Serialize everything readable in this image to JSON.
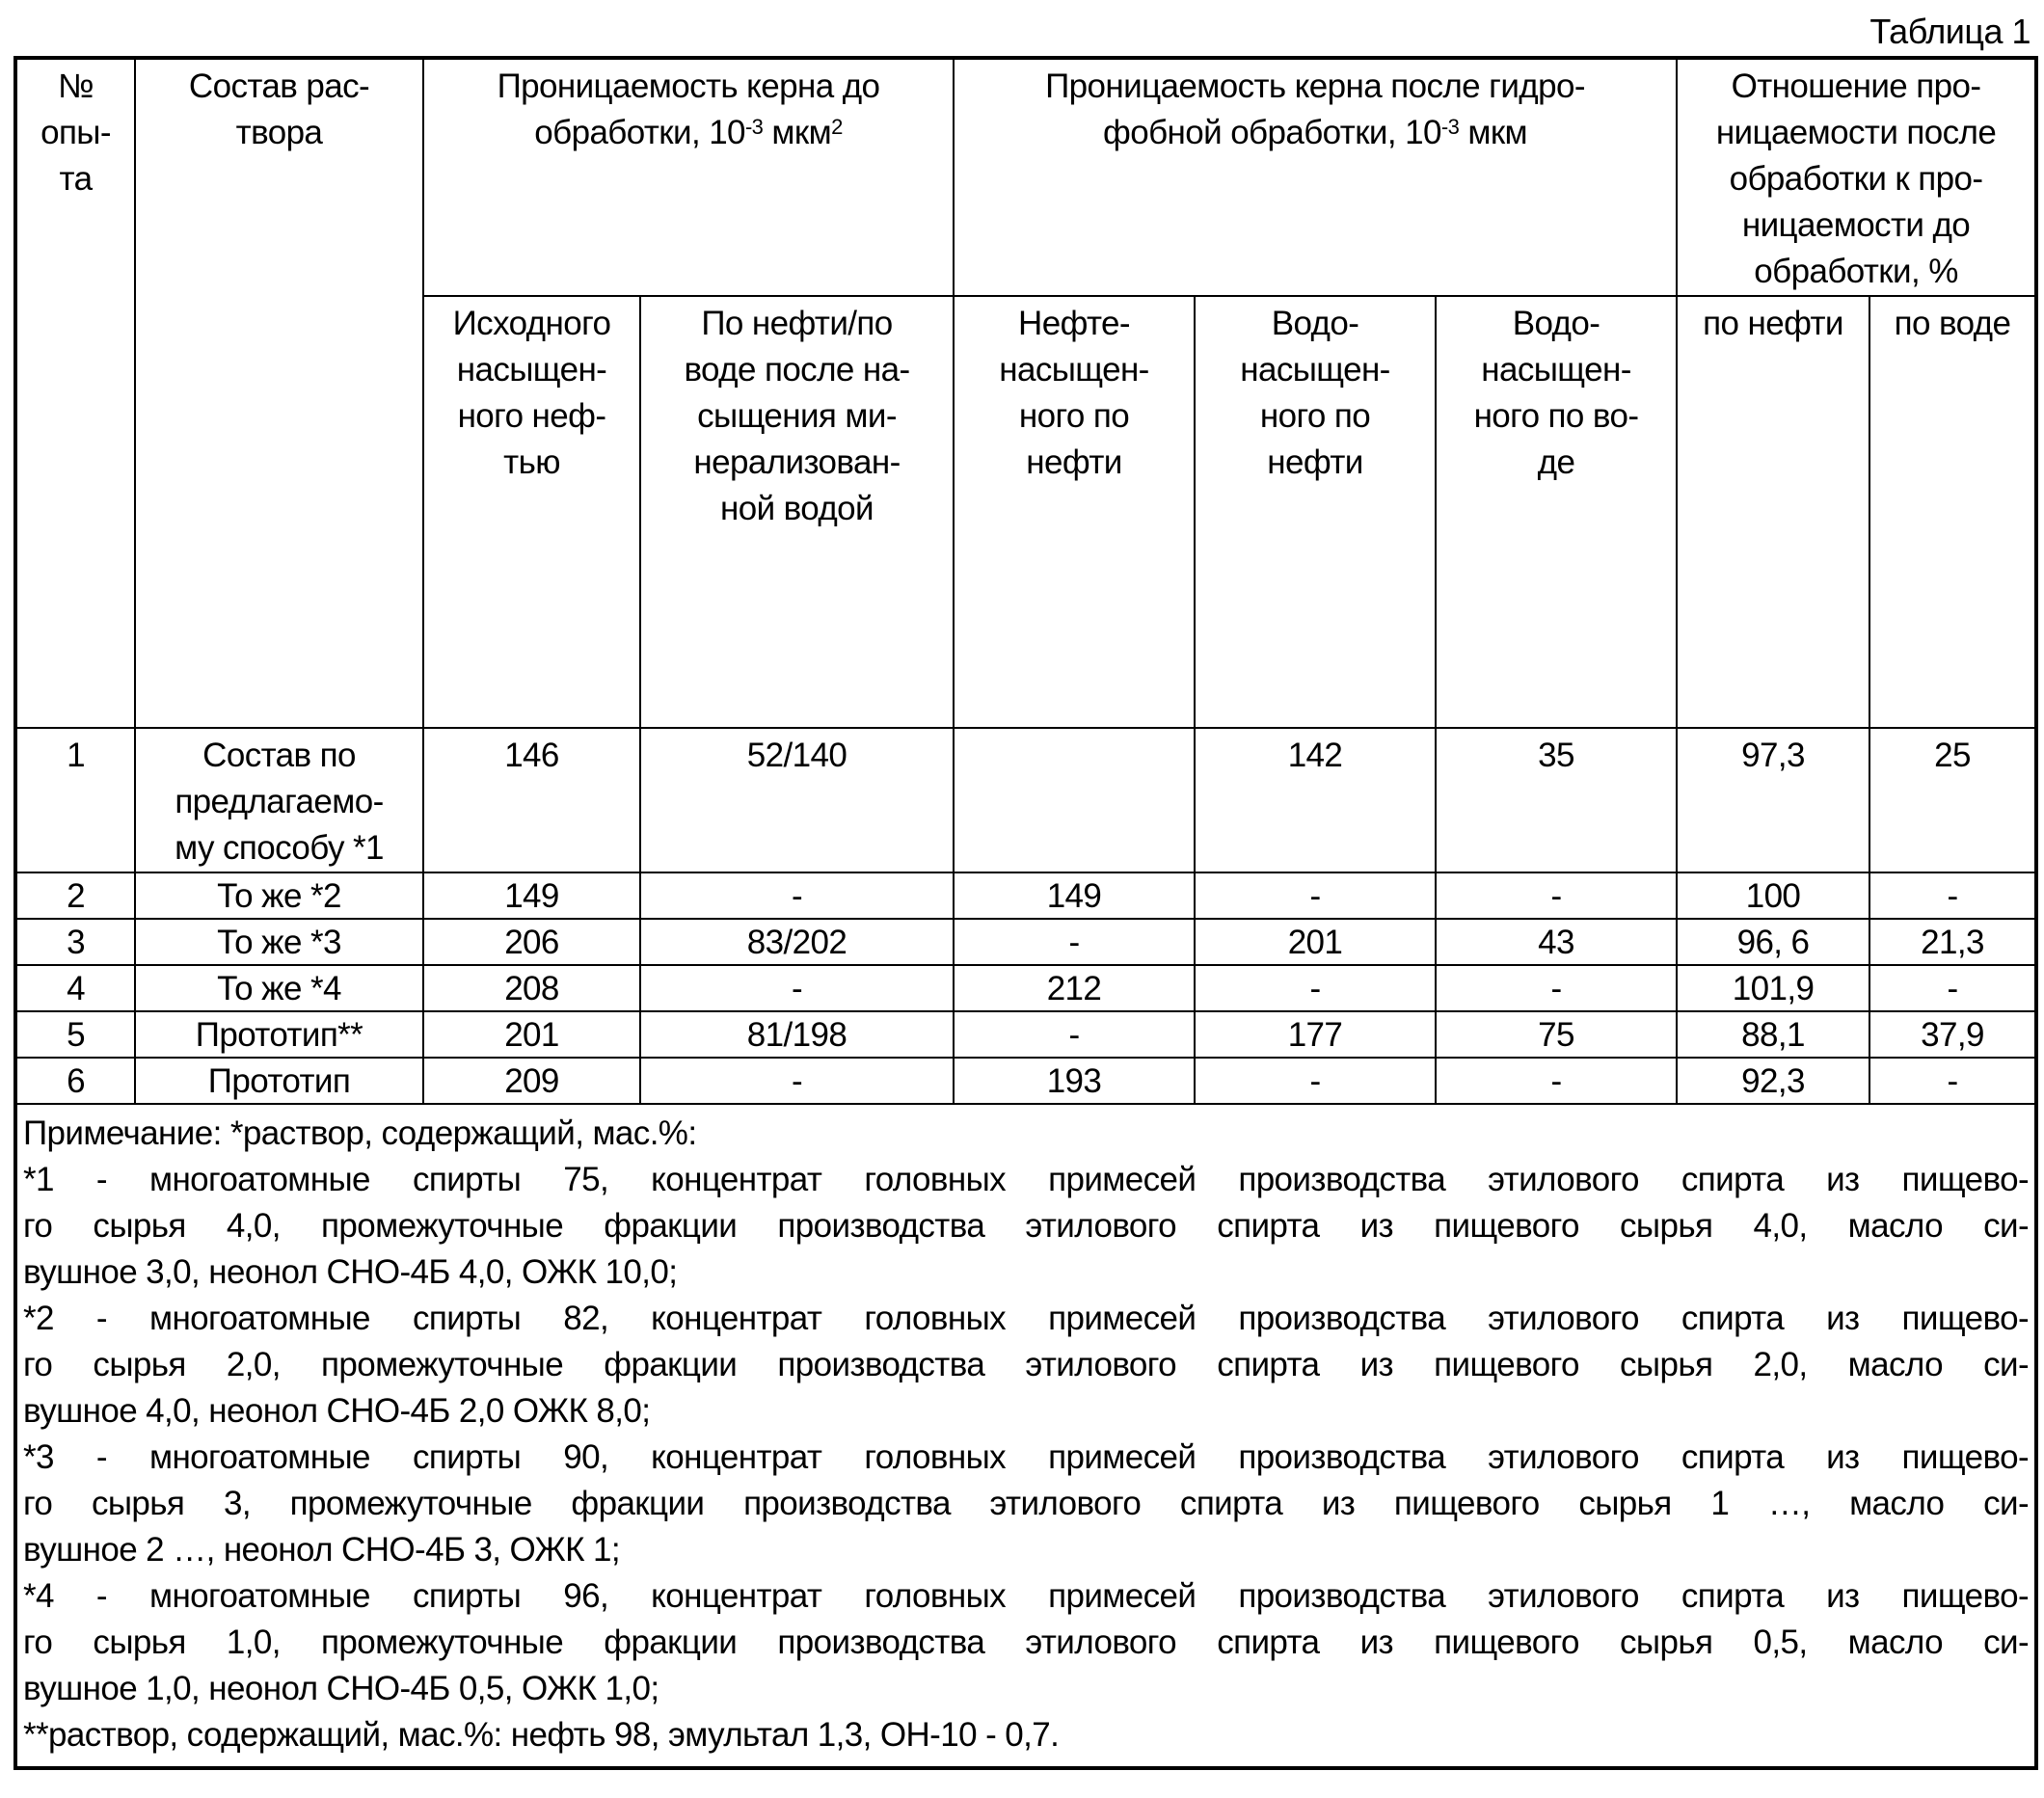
{
  "caption": "Таблица 1",
  "header": {
    "num": "№ опы-та",
    "num_lines": [
      "№",
      "опы-",
      "та"
    ],
    "composition_lines": [
      "Состав рас-",
      "твора"
    ],
    "perm_before_lines": [
      "Проницаемость керна до",
      "обработки, 10"
    ],
    "perm_before_exp": "-3",
    "perm_before_unit": " мкм",
    "perm_before_unit_exp": "2",
    "perm_after_lines": [
      "Проницаемость керна после гидро-",
      "фобной обработки, 10"
    ],
    "perm_after_exp": "-3",
    "perm_after_unit": " мкм",
    "ratio_lines": [
      "Отношение про-",
      "ницаемости после",
      "обработки к про-",
      "ницаемости до",
      "обработки, %"
    ],
    "sub": [
      [
        "Исходного",
        "насыщен-",
        "ного неф-",
        "тью"
      ],
      [
        "По нефти/по",
        "воде после на-",
        "сыщения ми-",
        "нерализован-",
        "ной водой"
      ],
      [
        "Нефте-",
        "насыщен-",
        "ного по",
        "нефти"
      ],
      [
        "Водо-",
        "насыщен-",
        "ного по",
        "нефти"
      ],
      [
        "Водо-",
        "насыщен-",
        "ного по во-",
        "де"
      ],
      [
        "по нефти"
      ],
      [
        "по воде"
      ]
    ]
  },
  "rows": [
    {
      "cells": [
        "1",
        "Состав по предлагаемо-му способу *1",
        "146",
        "52/140",
        "",
        "142",
        "35",
        "97,3",
        "25"
      ],
      "comp_lines": [
        "Состав по",
        "предлагаемо-",
        "му способу *1"
      ]
    },
    {
      "cells": [
        "2",
        "То же *2",
        "149",
        "-",
        "149",
        "-",
        "-",
        "100",
        "-"
      ]
    },
    {
      "cells": [
        "3",
        "То же *3",
        "206",
        "83/202",
        "-",
        "201",
        "43",
        "96, 6",
        "21,3"
      ]
    },
    {
      "cells": [
        "4",
        "То же *4",
        "208",
        "-",
        "212",
        "-",
        "-",
        "101,9",
        "-"
      ]
    },
    {
      "cells": [
        "5",
        "Прототип**",
        "201",
        "81/198",
        "-",
        "177",
        "75",
        "88,1",
        "37,9"
      ]
    },
    {
      "cells": [
        "6",
        "Прототип",
        "209",
        "-",
        "193",
        "-",
        "-",
        "92,3",
        "-"
      ]
    }
  ],
  "notes": [
    "Примечание: *раствор, содержащий, мас.%:",
    "*1 - многоатомные спирты 75, концентрат головных примесей производства этилового спирта из пищево-",
    "го сырья 4,0, промежуточные фракции производства этилового спирта из пищевого сырья 4,0, масло си-",
    "вушное 3,0, неонол СНО-4Б 4,0, ОЖК 10,0;",
    "*2 - многоатомные спирты 82, концентрат головных примесей производства этилового спирта из пищево-",
    "го сырья 2,0, промежуточные фракции производства этилового спирта из пищевого сырья 2,0, масло си-",
    "вушное 4,0, неонол СНО-4Б 2,0 ОЖК 8,0;",
    "*3 - многоатомные спирты 90, концентрат головных примесей производства этилового спирта из пищево-",
    "го сырья 3, промежуточные фракции производства этилового спирта из пищевого сырья 1 …, масло си-",
    "вушное 2 …, неонол СНО-4Б 3, ОЖК 1;",
    "*4 - многоатомные спирты 96, концентрат головных примесей производства этилового спирта из пищево-",
    "го сырья 1,0, промежуточные фракции производства этилового спирта из пищевого сырья 0,5, масло си-",
    "вушное 1,0, неонол СНО-4Б 0,5, ОЖК 1,0;",
    "**раствор, содержащий, мас.%: нефть 98, эмультал 1,3, ОН-10 - 0,7."
  ]
}
